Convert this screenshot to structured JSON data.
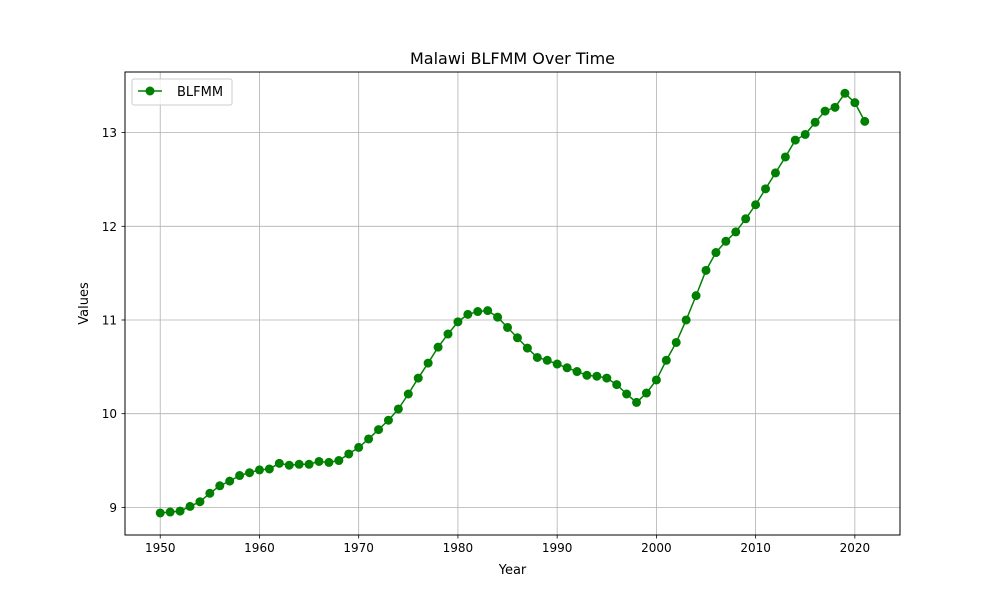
{
  "chart_data": {
    "type": "line",
    "title": "Malawi BLFMM Over Time",
    "xlabel": "Year",
    "ylabel": "Values",
    "xlim": [
      1946.45,
      2024.55
    ],
    "ylim": [
      8.705,
      13.647
    ],
    "x_ticks": [
      1950,
      1960,
      1970,
      1980,
      1990,
      2000,
      2010,
      2020
    ],
    "y_ticks": [
      9,
      10,
      11,
      12,
      13
    ],
    "grid": true,
    "legend_position": "top-left",
    "series": [
      {
        "name": "BLFMM",
        "color": "#008000",
        "marker": "circle",
        "x": [
          1950,
          1951,
          1952,
          1953,
          1954,
          1955,
          1956,
          1957,
          1958,
          1959,
          1960,
          1961,
          1962,
          1963,
          1964,
          1965,
          1966,
          1967,
          1968,
          1969,
          1970,
          1971,
          1972,
          1973,
          1974,
          1975,
          1976,
          1977,
          1978,
          1979,
          1980,
          1981,
          1982,
          1983,
          1984,
          1985,
          1986,
          1987,
          1988,
          1989,
          1990,
          1991,
          1992,
          1993,
          1994,
          1995,
          1996,
          1997,
          1998,
          1999,
          2000,
          2001,
          2002,
          2003,
          2004,
          2005,
          2006,
          2007,
          2008,
          2009,
          2010,
          2011,
          2012,
          2013,
          2014,
          2015,
          2016,
          2017,
          2018,
          2019,
          2020,
          2021
        ],
        "values": [
          8.94,
          8.95,
          8.96,
          9.01,
          9.06,
          9.15,
          9.23,
          9.28,
          9.34,
          9.37,
          9.4,
          9.41,
          9.47,
          9.45,
          9.46,
          9.46,
          9.49,
          9.48,
          9.5,
          9.57,
          9.64,
          9.73,
          9.83,
          9.93,
          10.05,
          10.21,
          10.38,
          10.54,
          10.71,
          10.85,
          10.98,
          11.06,
          11.09,
          11.1,
          11.03,
          10.92,
          10.81,
          10.7,
          10.6,
          10.57,
          10.53,
          10.49,
          10.45,
          10.41,
          10.4,
          10.38,
          10.31,
          10.21,
          10.12,
          10.22,
          10.36,
          10.57,
          10.76,
          11.0,
          11.26,
          11.53,
          11.72,
          11.84,
          11.94,
          12.08,
          12.23,
          12.4,
          12.57,
          12.74,
          12.92,
          12.98,
          13.11,
          13.23,
          13.27,
          13.42,
          13.32,
          13.12
        ]
      }
    ]
  }
}
